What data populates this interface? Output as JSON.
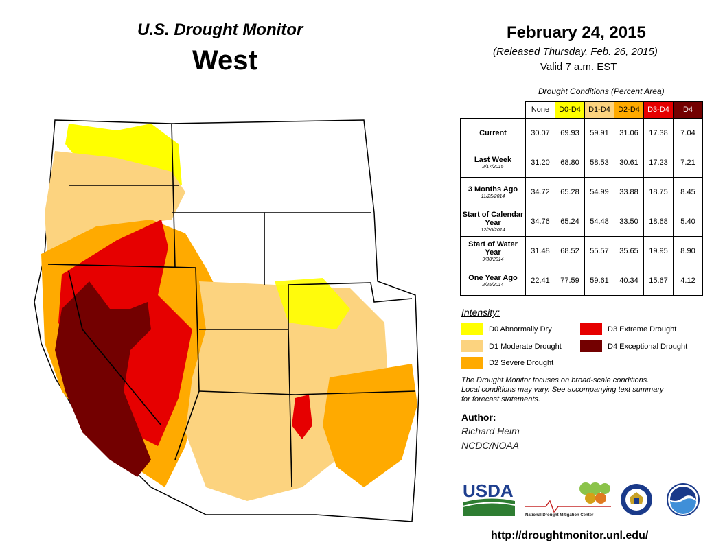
{
  "header": {
    "org_title": "U.S. Drought Monitor",
    "region": "West",
    "date": "February 24, 2015",
    "released": "(Released Thursday, Feb. 26, 2015)",
    "valid": "Valid  7 a.m. EST"
  },
  "table": {
    "caption": "Drought Conditions (Percent Area)",
    "columns": [
      {
        "label": "None",
        "color": "#ffffff",
        "text_color": "#000000"
      },
      {
        "label": "D0-D4",
        "color": "#ffff00",
        "text_color": "#000000"
      },
      {
        "label": "D1-D4",
        "color": "#fcd37f",
        "text_color": "#000000"
      },
      {
        "label": "D2-D4",
        "color": "#ffaa00",
        "text_color": "#000000"
      },
      {
        "label": "D3-D4",
        "color": "#e60000",
        "text_color": "#ffffff"
      },
      {
        "label": "D4",
        "color": "#730000",
        "text_color": "#ffffff"
      }
    ],
    "rows": [
      {
        "label": "Current",
        "sub": "",
        "values": [
          "30.07",
          "69.93",
          "59.91",
          "31.06",
          "17.38",
          "7.04"
        ]
      },
      {
        "label": "Last Week",
        "sub": "2/17/2015",
        "values": [
          "31.20",
          "68.80",
          "58.53",
          "30.61",
          "17.23",
          "7.21"
        ]
      },
      {
        "label": "3 Months Ago",
        "sub": "11/25/2014",
        "values": [
          "34.72",
          "65.28",
          "54.99",
          "33.88",
          "18.75",
          "8.45"
        ]
      },
      {
        "label": "Start of Calendar Year",
        "sub": "12/30/2014",
        "values": [
          "34.76",
          "65.24",
          "54.48",
          "33.50",
          "18.68",
          "5.40"
        ]
      },
      {
        "label": "Start of Water Year",
        "sub": "9/30/2014",
        "values": [
          "31.48",
          "68.52",
          "55.57",
          "35.65",
          "19.95",
          "8.90"
        ]
      },
      {
        "label": "One Year Ago",
        "sub": "2/25/2014",
        "values": [
          "22.41",
          "77.59",
          "59.61",
          "40.34",
          "15.67",
          "4.12"
        ]
      }
    ]
  },
  "legend": {
    "title": "Intensity:",
    "items": [
      {
        "label": "D0 Abnormally Dry",
        "color": "#ffff00"
      },
      {
        "label": "D1 Moderate Drought",
        "color": "#fcd37f"
      },
      {
        "label": "D2 Severe Drought",
        "color": "#ffaa00"
      },
      {
        "label": "D3 Extreme Drought",
        "color": "#e60000"
      },
      {
        "label": "D4 Exceptional Drought",
        "color": "#730000"
      }
    ]
  },
  "note": {
    "line1": "The Drought Monitor focuses on broad-scale conditions.",
    "line2": "Local conditions may vary. See accompanying text summary",
    "line3": "for forecast statements."
  },
  "author": {
    "heading": "Author:",
    "name": "Richard Heim",
    "org": "NCDC/NOAA"
  },
  "logos": {
    "usda": "USDA",
    "ndmc": "National Drought Mitigation Center"
  },
  "url": "http://droughtmonitor.unl.edu/"
}
